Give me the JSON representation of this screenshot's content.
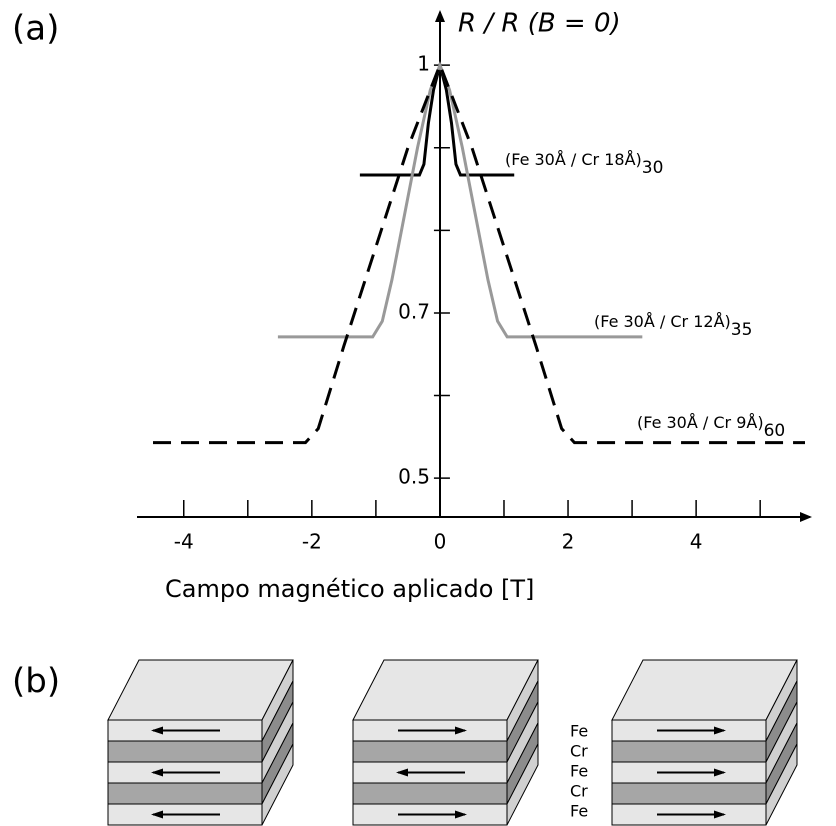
{
  "chart_data": {
    "type": "line",
    "panel_label": "(a)",
    "y_label": "R / R (B = 0)",
    "x_label": "Campo magnético aplicado [T]",
    "xlim": [
      -4.73,
      5.7
    ],
    "ylim": [
      0.453,
      1.057
    ],
    "xticks": [
      -4,
      -2,
      0,
      2,
      4
    ],
    "xminorticks": [
      -3,
      -1,
      1,
      3,
      5
    ],
    "yticks": [
      0.5,
      0.7,
      1
    ],
    "yminorticks": [
      0.6,
      0.8,
      0.9
    ],
    "series": [
      {
        "name": "(Fe 30Å / Cr 18Å)",
        "subscript": "30",
        "color": "#000000",
        "dashed": false,
        "x": [
          -1.25,
          -0.32,
          -0.25,
          -0.18,
          -0.1,
          0,
          0.1,
          0.18,
          0.25,
          0.32,
          1.16
        ],
        "values": [
          0.867,
          0.867,
          0.88,
          0.93,
          0.97,
          1,
          0.97,
          0.93,
          0.88,
          0.867,
          0.867
        ]
      },
      {
        "name": "(Fe 30Å / Cr 12Å)",
        "subscript": "35",
        "color": "#999999",
        "dashed": false,
        "x": [
          -2.53,
          -1.05,
          -0.9,
          -0.75,
          -0.55,
          -0.35,
          -0.15,
          0,
          0.15,
          0.35,
          0.55,
          0.75,
          0.9,
          1.05,
          3.16
        ],
        "values": [
          0.671,
          0.671,
          0.69,
          0.74,
          0.82,
          0.9,
          0.97,
          1,
          0.97,
          0.9,
          0.82,
          0.74,
          0.69,
          0.671,
          0.671
        ]
      },
      {
        "name": "(Fe 30Å / Cr 9Å)",
        "subscript": "60",
        "color": "#000000",
        "dashed": true,
        "x": [
          -4.48,
          -2.1,
          -1.9,
          -1.5,
          -1.0,
          -0.5,
          0,
          0.5,
          1.0,
          1.5,
          1.9,
          2.1,
          5.7
        ],
        "values": [
          0.543,
          0.543,
          0.56,
          0.66,
          0.78,
          0.9,
          1,
          0.9,
          0.78,
          0.66,
          0.56,
          0.543,
          0.543
        ]
      }
    ]
  },
  "diagram": {
    "panel_label": "(b)",
    "layer_labels": [
      "Fe",
      "Cr",
      "Fe",
      "Cr",
      "Fe"
    ]
  }
}
